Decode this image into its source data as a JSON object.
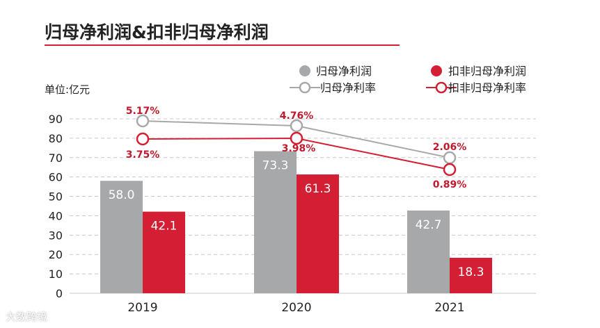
{
  "chart_data": {
    "type": "bar+line",
    "title": "归母净利润&扣非归母净利润",
    "unit_label": "单位:亿元",
    "categories": [
      "2019",
      "2020",
      "2021"
    ],
    "ylim": [
      0,
      90
    ],
    "yticks": [
      0,
      10,
      20,
      30,
      40,
      50,
      60,
      70,
      80,
      90
    ],
    "grid": true,
    "legend": [
      "归母净利润",
      "扣非归母净利润",
      "归母净利率",
      "扣非归母净利率"
    ],
    "bar_series": [
      {
        "name": "归母净利润",
        "color": "#a7a8aa",
        "values": [
          58.0,
          73.3,
          42.7
        ],
        "labels": [
          "58.0",
          "73.3",
          "42.7"
        ]
      },
      {
        "name": "扣非归母净利润",
        "color": "#d41e34",
        "values": [
          42.1,
          61.3,
          18.3
        ],
        "labels": [
          "42.1",
          "61.3",
          "18.3"
        ]
      }
    ],
    "line_series": [
      {
        "name": "归母净利率",
        "color": "#a7a8aa",
        "values_percent": [
          5.17,
          4.76,
          2.06
        ],
        "labels": [
          "5.17%",
          "4.76%",
          "2.06%"
        ]
      },
      {
        "name": "扣非归母净利率",
        "color": "#d41e34",
        "values_percent": [
          3.75,
          3.98,
          0.89
        ],
        "labels": [
          "3.75%",
          "3.98%",
          "0.89%"
        ]
      }
    ]
  },
  "watermark": "大数跨境"
}
